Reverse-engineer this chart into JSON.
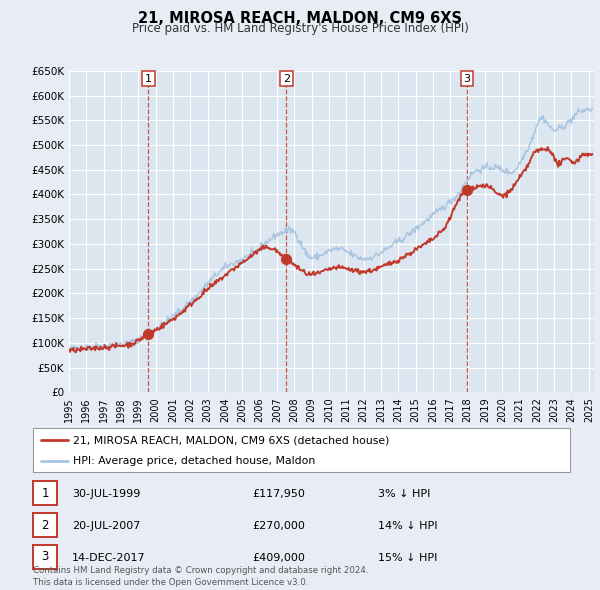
{
  "title": "21, MIROSA REACH, MALDON, CM9 6XS",
  "subtitle": "Price paid vs. HM Land Registry's House Price Index (HPI)",
  "bg_color": "#e8edf5",
  "plot_bg_color": "#dce6f0",
  "grid_color": "#ffffff",
  "hpi_color": "#a8c4e0",
  "price_color": "#c0392b",
  "sale_marker_color": "#c0392b",
  "ylim": [
    0,
    650000
  ],
  "yticks": [
    0,
    50000,
    100000,
    150000,
    200000,
    250000,
    300000,
    350000,
    400000,
    450000,
    500000,
    550000,
    600000,
    650000
  ],
  "ytick_labels": [
    "£0",
    "£50K",
    "£100K",
    "£150K",
    "£200K",
    "£250K",
    "£300K",
    "£350K",
    "£400K",
    "£450K",
    "£500K",
    "£550K",
    "£600K",
    "£650K"
  ],
  "xlim_start": 1995.0,
  "xlim_end": 2025.3,
  "xticks": [
    1995,
    1996,
    1997,
    1998,
    1999,
    2000,
    2001,
    2002,
    2003,
    2004,
    2005,
    2006,
    2007,
    2008,
    2009,
    2010,
    2011,
    2012,
    2013,
    2014,
    2015,
    2016,
    2017,
    2018,
    2019,
    2020,
    2021,
    2022,
    2023,
    2024,
    2025
  ],
  "sales": [
    {
      "date_year": 1999.58,
      "price": 117950,
      "label": "1"
    },
    {
      "date_year": 2007.55,
      "price": 270000,
      "label": "2"
    },
    {
      "date_year": 2017.96,
      "price": 409000,
      "label": "3"
    }
  ],
  "legend_label_price": "21, MIROSA REACH, MALDON, CM9 6XS (detached house)",
  "legend_label_hpi": "HPI: Average price, detached house, Maldon",
  "table_rows": [
    {
      "num": "1",
      "date": "30-JUL-1999",
      "price": "£117,950",
      "pct": "3% ↓ HPI"
    },
    {
      "num": "2",
      "date": "20-JUL-2007",
      "price": "£270,000",
      "pct": "14% ↓ HPI"
    },
    {
      "num": "3",
      "date": "14-DEC-2017",
      "price": "£409,000",
      "pct": "15% ↓ HPI"
    }
  ],
  "footer": "Contains HM Land Registry data © Crown copyright and database right 2024.\nThis data is licensed under the Open Government Licence v3.0."
}
